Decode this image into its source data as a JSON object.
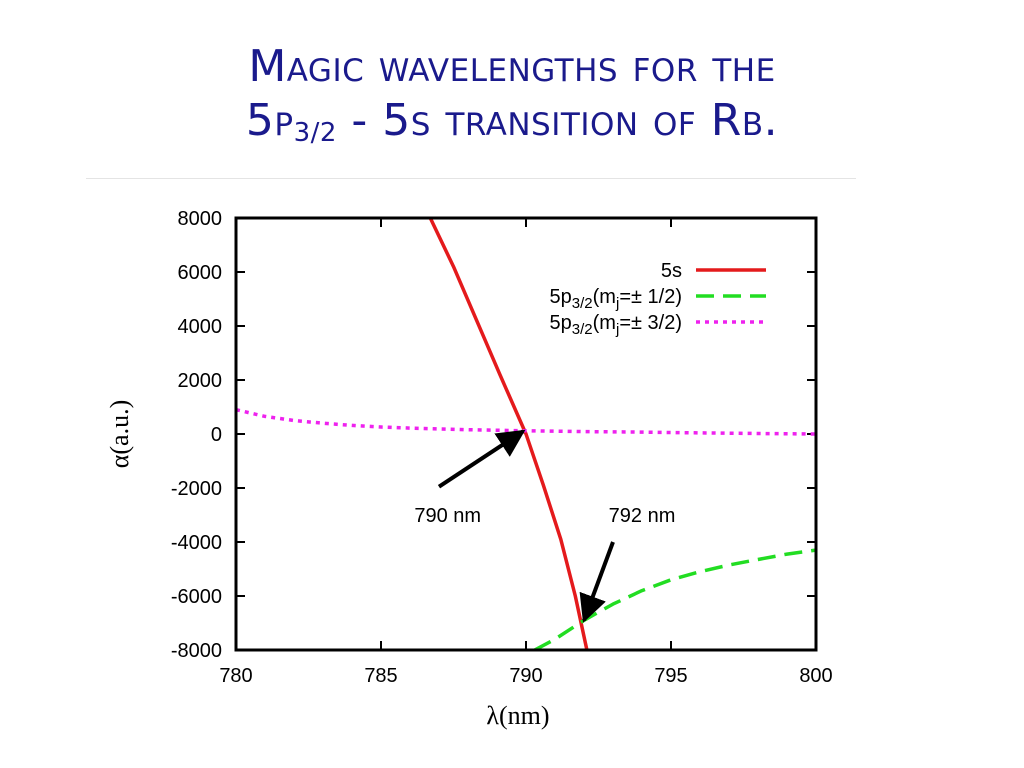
{
  "slide": {
    "title_line1": "Magic wavelengths for the",
    "title_line2_prefix": "5p",
    "title_line2_sub": "3/2",
    "title_line2_suffix": " - 5s transition of Rb."
  },
  "chart_data": {
    "type": "line",
    "xlabel": "λ(nm)",
    "ylabel": "α(a.u.)",
    "xlim": [
      780,
      800
    ],
    "ylim": [
      -8000,
      8000
    ],
    "xticks": [
      780,
      785,
      790,
      795,
      800
    ],
    "yticks": [
      8000,
      6000,
      4000,
      2000,
      0,
      -2000,
      -4000,
      -6000,
      -8000
    ],
    "grid": false,
    "legend_position": "top-right",
    "series": [
      {
        "name": "5s",
        "name_parts": [
          "5s"
        ],
        "color": "#e41a1c",
        "style": "solid",
        "x": [
          786.7,
          787.5,
          788.3,
          789.1,
          790.0,
          790.6,
          791.2,
          791.7,
          792.1
        ],
        "y": [
          8000,
          6200,
          4200,
          2200,
          0,
          -1900,
          -3900,
          -6000,
          -8000
        ]
      },
      {
        "name": "5p3/2(mj=± 1/2)",
        "name_parts": [
          "5p",
          "3/2",
          "(m",
          "j",
          "=± 1/2)"
        ],
        "color": "#22dd22",
        "style": "dashed",
        "x": [
          790.3,
          791.0,
          792.0,
          793.0,
          794.0,
          795.0,
          796.0,
          797.0,
          798.0,
          799.0,
          800.0
        ],
        "y": [
          -8000,
          -7600,
          -6900,
          -6300,
          -5800,
          -5400,
          -5100,
          -4850,
          -4650,
          -4450,
          -4300
        ]
      },
      {
        "name": "5p3/2(mj=± 3/2)",
        "name_parts": [
          "5p",
          "3/2",
          "(m",
          "j",
          "=± 3/2)"
        ],
        "color": "#ee22ee",
        "style": "dotted",
        "x": [
          780.0,
          781.0,
          782.0,
          783.0,
          784.0,
          785.0,
          786.0,
          788.0,
          790.0,
          792.0,
          794.0,
          796.0,
          798.0,
          800.0
        ],
        "y": [
          900,
          650,
          500,
          400,
          320,
          260,
          220,
          160,
          120,
          90,
          70,
          40,
          20,
          0
        ]
      }
    ],
    "annotations": [
      {
        "text": "790 nm",
        "label_x": 787.3,
        "label_y": -3000,
        "arrow_from": [
          787.0,
          -1950
        ],
        "arrow_to": [
          789.9,
          100
        ]
      },
      {
        "text": "792 nm",
        "label_x": 794.0,
        "label_y": -3000,
        "arrow_from": [
          793.0,
          -4000
        ],
        "arrow_to": [
          792.0,
          -6900
        ]
      }
    ]
  }
}
